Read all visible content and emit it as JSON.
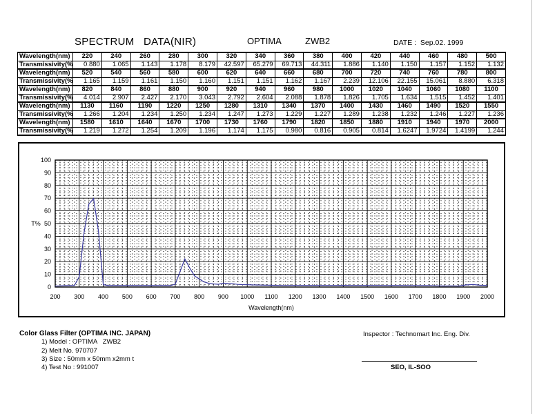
{
  "header": {
    "title": "SPECTRUM   DATA(NIR)",
    "company": "OPTIMA",
    "model": "ZWB2",
    "date": "DATE :  Sep.02. 1999"
  },
  "table": {
    "wavelength_label": "Wavelength(nm)",
    "transmissivity_label": "Transmissivity(%)",
    "rows": [
      {
        "wavelengths": [
          "220",
          "240",
          "260",
          "280",
          "300",
          "320",
          "340",
          "360",
          "380",
          "400",
          "420",
          "440",
          "460",
          "480",
          "500"
        ],
        "transmissivities": [
          "0.880",
          "1.065",
          "1.143",
          "1.178",
          "8.179",
          "42.597",
          "65.279",
          "69.713",
          "44.311",
          "1.886",
          "1.140",
          "1.150",
          "1.157",
          "1.152",
          "1.132"
        ]
      },
      {
        "wavelengths": [
          "520",
          "540",
          "560",
          "580",
          "600",
          "620",
          "640",
          "660",
          "680",
          "700",
          "720",
          "740",
          "760",
          "780",
          "800"
        ],
        "transmissivities": [
          "1.165",
          "1.159",
          "1.161",
          "1.150",
          "1.160",
          "1.151",
          "1.151",
          "1.162",
          "1.167",
          "2.239",
          "12.106",
          "22.155",
          "15.061",
          "8.880",
          "6.318"
        ]
      },
      {
        "wavelengths": [
          "820",
          "840",
          "860",
          "880",
          "900",
          "920",
          "940",
          "960",
          "980",
          "1000",
          "1020",
          "1040",
          "1060",
          "1080",
          "1100"
        ],
        "transmissivities": [
          "4.014",
          "2.907",
          "2.427",
          "2.170",
          "3.043",
          "2.792",
          "2.604",
          "2.088",
          "1.878",
          "1.826",
          "1.705",
          "1.634",
          "1.515",
          "1.452",
          "1.401"
        ]
      },
      {
        "wavelengths": [
          "1130",
          "1160",
          "1190",
          "1220",
          "1250",
          "1280",
          "1310",
          "1340",
          "1370",
          "1400",
          "1430",
          "1460",
          "1490",
          "1520",
          "1550"
        ],
        "transmissivities": [
          "1.266",
          "1.204",
          "1.234",
          "1.250",
          "1.234",
          "1.247",
          "1.273",
          "1.229",
          "1.227",
          "1.289",
          "1.238",
          "1.232",
          "1.246",
          "1.227",
          "1.236"
        ]
      },
      {
        "wavelengths": [
          "1580",
          "1610",
          "1640",
          "1670",
          "1700",
          "1730",
          "1760",
          "1790",
          "1820",
          "1850",
          "1880",
          "1910",
          "1940",
          "1970",
          "2000"
        ],
        "transmissivities": [
          "1.219",
          "1.272",
          "1.254",
          "1.209",
          "1.196",
          "1.174",
          "1.175",
          "0.980",
          "0.816",
          "0.905",
          "0.814",
          "1.6247",
          "1.9724",
          "1.4199",
          "1.244"
        ]
      }
    ]
  },
  "chart_data": {
    "type": "line",
    "title": "",
    "xlabel": "Wavelength(nm)",
    "ylabel": "T%",
    "xlim": [
      200,
      2000
    ],
    "ylim": [
      0,
      100
    ],
    "x_ticks": [
      200,
      300,
      400,
      500,
      600,
      700,
      800,
      900,
      1000,
      1100,
      1200,
      1300,
      1400,
      1500,
      1600,
      1700,
      1800,
      1900,
      2000
    ],
    "y_ticks": [
      0,
      10,
      20,
      30,
      40,
      50,
      60,
      70,
      80,
      90,
      100
    ],
    "grid": true,
    "line_color": "#3a3aa0",
    "series": [
      {
        "x": [
          200,
          220,
          240,
          260,
          280,
          300,
          320,
          340,
          360,
          380,
          400,
          420,
          440,
          460,
          480,
          500,
          520,
          540,
          560,
          580,
          600,
          620,
          640,
          660,
          680,
          700,
          720,
          740,
          760,
          780,
          800,
          820,
          840,
          860,
          880,
          900,
          920,
          940,
          960,
          980,
          1000,
          1020,
          1040,
          1060,
          1080,
          1100,
          1130,
          1160,
          1190,
          1220,
          1250,
          1280,
          1310,
          1340,
          1370,
          1400,
          1430,
          1460,
          1490,
          1520,
          1550,
          1580,
          1610,
          1640,
          1670,
          1700,
          1730,
          1760,
          1790,
          1820,
          1850,
          1880,
          1910,
          1940,
          1970,
          2000
        ],
        "y": [
          0.8,
          0.88,
          1.065,
          1.143,
          1.178,
          8.179,
          42.597,
          65.279,
          69.713,
          44.311,
          1.886,
          1.14,
          1.15,
          1.157,
          1.152,
          1.132,
          1.165,
          1.159,
          1.161,
          1.15,
          1.16,
          1.151,
          1.151,
          1.162,
          1.167,
          2.239,
          12.106,
          22.155,
          15.061,
          8.88,
          6.318,
          4.014,
          2.907,
          2.427,
          2.17,
          3.043,
          2.792,
          2.604,
          2.088,
          1.878,
          1.826,
          1.705,
          1.634,
          1.515,
          1.452,
          1.401,
          1.266,
          1.204,
          1.234,
          1.25,
          1.234,
          1.247,
          1.273,
          1.229,
          1.227,
          1.289,
          1.238,
          1.232,
          1.246,
          1.227,
          1.236,
          1.219,
          1.272,
          1.254,
          1.209,
          1.196,
          1.174,
          1.175,
          0.98,
          0.816,
          0.905,
          0.814,
          1.6247,
          1.9724,
          1.4199,
          1.244
        ]
      }
    ]
  },
  "footer": {
    "title": "Color Glass Filter (OPTIMA INC. JAPAN)",
    "items": [
      "1) Model : OPTIMA   ZWB2",
      "2) Melt No. 970707",
      "3) Size : 50mm x 50mm x2mm t",
      "4) Test No : 991007"
    ],
    "inspector": "Inspector : Technomart Inc. Eng. Div.",
    "signature": "SEO, IL-SOO"
  }
}
